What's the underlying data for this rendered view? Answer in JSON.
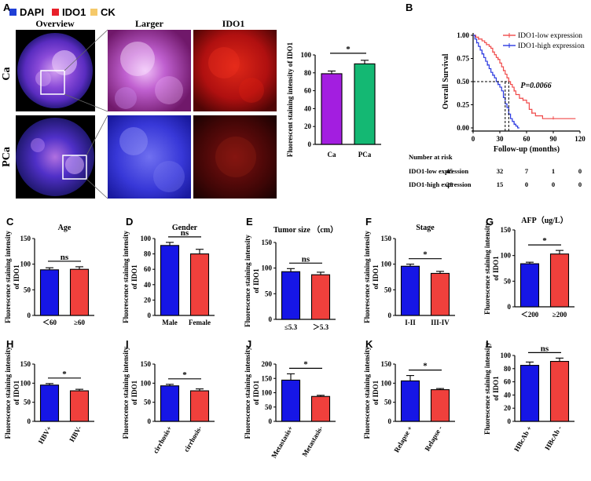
{
  "panel_letters": {
    "A": "A",
    "B": "B",
    "C": "C",
    "D": "D",
    "E": "E",
    "F": "F",
    "G": "G",
    "H": "H",
    "I": "I",
    "J": "J",
    "K": "K",
    "L": "L"
  },
  "panel_a": {
    "legend": [
      {
        "label": "DAPI",
        "color": "#1f3fd6"
      },
      {
        "label": "IDO1",
        "color": "#e8202a"
      },
      {
        "label": "CK",
        "color": "#f5c96a"
      }
    ],
    "column_titles": [
      "Overview",
      "Larger",
      "IDO1"
    ],
    "row_labels": [
      "Ca",
      "PCa"
    ]
  },
  "colors": {
    "blue": "#1616e6",
    "red": "#f0403c",
    "purple": "#a31ee0",
    "green": "#14b873",
    "km_red": "#f04a4a",
    "km_blue": "#2a38e0"
  },
  "chart_data": [
    {
      "id": "A_bar",
      "type": "bar",
      "title": "",
      "ylabel": "Fluorescent staining intensity of IDO1",
      "categories": [
        "Ca",
        "PCa"
      ],
      "values": [
        79,
        90
      ],
      "errors": [
        3,
        4
      ],
      "ylim": [
        0,
        100
      ],
      "yticks": [
        0,
        20,
        40,
        60,
        80,
        100
      ],
      "significance": "*"
    },
    {
      "id": "B",
      "type": "line",
      "xlabel": "Follow-up (months)",
      "ylabel": "Overall Survival",
      "xlim": [
        0,
        120
      ],
      "ylim": [
        0,
        1
      ],
      "xticks": [
        0,
        30,
        60,
        90,
        120
      ],
      "yticks": [
        "0.00",
        "0.25",
        "0.50",
        "0.75",
        "1.00"
      ],
      "series": [
        {
          "name": "IDO1-low expression",
          "x": [
            0,
            3,
            6,
            10,
            13,
            15,
            18,
            20,
            22,
            24,
            26,
            28,
            30,
            32,
            34,
            36,
            38,
            40,
            42,
            44,
            46,
            48,
            52,
            56,
            60,
            63,
            66,
            70,
            78,
            90,
            100,
            115
          ],
          "y": [
            1.0,
            0.98,
            0.96,
            0.94,
            0.92,
            0.9,
            0.88,
            0.86,
            0.82,
            0.79,
            0.76,
            0.74,
            0.7,
            0.66,
            0.62,
            0.58,
            0.54,
            0.5,
            0.47,
            0.44,
            0.4,
            0.36,
            0.32,
            0.3,
            0.27,
            0.2,
            0.16,
            0.13,
            0.1,
            0.1,
            0.1,
            0.1
          ]
        },
        {
          "name": "IDO1-high expression",
          "x": [
            0,
            2,
            4,
            6,
            8,
            10,
            12,
            14,
            16,
            18,
            20,
            22,
            24,
            26,
            28,
            30,
            32,
            34,
            36,
            38,
            40,
            42,
            44,
            46,
            48,
            50,
            52
          ],
          "y": [
            1.0,
            0.96,
            0.92,
            0.88,
            0.84,
            0.8,
            0.76,
            0.72,
            0.68,
            0.64,
            0.6,
            0.57,
            0.54,
            0.5,
            0.47,
            0.44,
            0.4,
            0.33,
            0.26,
            0.22,
            0.15,
            0.1,
            0.07,
            0.04,
            0.02,
            0.0,
            0.0
          ]
        }
      ],
      "pvalue": "P=0.0066",
      "risk_title": "Number at risk",
      "risk_rows": [
        {
          "label": "IDO1-low expression",
          "values": [
            "45",
            "32",
            "7",
            "1",
            "0"
          ]
        },
        {
          "label": "IDO1-high expression",
          "values": [
            "28",
            "15",
            "0",
            "0",
            "0"
          ]
        }
      ]
    },
    {
      "id": "C",
      "type": "bar",
      "title": "Age",
      "ylabel": "Fluorescence staining intensity of IDO1",
      "categories": [
        "＜60",
        "≥60"
      ],
      "values": [
        89,
        90
      ],
      "errors": [
        4,
        5
      ],
      "ylim": [
        0,
        150
      ],
      "yticks": [
        0,
        50,
        100,
        150
      ],
      "significance": "ns"
    },
    {
      "id": "D",
      "type": "bar",
      "title": "Gender",
      "ylabel": "Fluorescence staining intensity of IDO1",
      "categories": [
        "Male",
        "Female"
      ],
      "values": [
        91,
        80
      ],
      "errors": [
        4,
        6
      ],
      "ylim": [
        0,
        100
      ],
      "yticks": [
        0,
        20,
        40,
        60,
        80,
        100
      ],
      "significance": "ns"
    },
    {
      "id": "E",
      "type": "bar",
      "title": "Tumor size （cm）",
      "ylabel": "Fluorescence staining intensity of IDO1",
      "categories": [
        "≤5.3",
        "＞5.3"
      ],
      "values": [
        93,
        87
      ],
      "errors": [
        6,
        5
      ],
      "ylim": [
        0,
        150
      ],
      "yticks": [
        0,
        50,
        100,
        150
      ],
      "significance": "ns"
    },
    {
      "id": "F",
      "type": "bar",
      "title": "Stage",
      "ylabel": "Fluorescence staining intensity of IDO1",
      "categories": [
        "I-II",
        "III-IV"
      ],
      "values": [
        96,
        82
      ],
      "errors": [
        4,
        4
      ],
      "ylim": [
        0,
        150
      ],
      "yticks": [
        0,
        50,
        100,
        150
      ],
      "significance": "*"
    },
    {
      "id": "G",
      "type": "bar",
      "title": "AFP（ug/L）",
      "ylabel": "Fluorescence staining intensity of IDO1",
      "categories": [
        "＜200",
        "≥200"
      ],
      "values": [
        84,
        103
      ],
      "errors": [
        3,
        7
      ],
      "ylim": [
        0,
        150
      ],
      "yticks": [
        0,
        50,
        100,
        150
      ],
      "significance": "*"
    },
    {
      "id": "H",
      "type": "bar",
      "title": "",
      "ylabel": "Fluorescence staining intensity of IDO1",
      "categories": [
        "HBV+",
        "HBV-"
      ],
      "values": [
        95,
        80
      ],
      "errors": [
        4,
        4
      ],
      "ylim": [
        0,
        150
      ],
      "yticks": [
        0,
        50,
        100,
        150
      ],
      "significance": "*"
    },
    {
      "id": "I",
      "type": "bar",
      "title": "",
      "ylabel": "Fluorescence staining intensity of IDO1",
      "categories": [
        "cirrhosis+",
        "cirrhosis-"
      ],
      "values": [
        93,
        80
      ],
      "errors": [
        4,
        5
      ],
      "ylim": [
        0,
        150
      ],
      "yticks": [
        0,
        50,
        100,
        150
      ],
      "significance": "*"
    },
    {
      "id": "J",
      "type": "bar",
      "title": "",
      "ylabel": "Fluorescence staining intensity of IDO1",
      "categories": [
        "Metastasis+",
        "Metastasis-"
      ],
      "values": [
        144,
        87
      ],
      "errors": [
        22,
        4
      ],
      "ylim": [
        0,
        200
      ],
      "yticks": [
        0,
        50,
        100,
        150,
        200
      ],
      "significance": "*"
    },
    {
      "id": "K",
      "type": "bar",
      "title": "",
      "ylabel": "Fluorescence staining intensity of IDO1",
      "categories": [
        "Relapse +",
        "Relapse -"
      ],
      "values": [
        106,
        83
      ],
      "errors": [
        14,
        3
      ],
      "ylim": [
        0,
        150
      ],
      "yticks": [
        0,
        50,
        100,
        150
      ],
      "significance": "*"
    },
    {
      "id": "L",
      "type": "bar",
      "title": "",
      "ylabel": "Fluorescence staining intensity of IDO1",
      "categories": [
        "HBcAb +",
        "HBcAb -"
      ],
      "values": [
        85,
        91
      ],
      "errors": [
        5,
        5
      ],
      "ylim": [
        0,
        100
      ],
      "yticks": [
        0,
        20,
        40,
        60,
        80,
        100
      ],
      "significance": "ns"
    }
  ]
}
